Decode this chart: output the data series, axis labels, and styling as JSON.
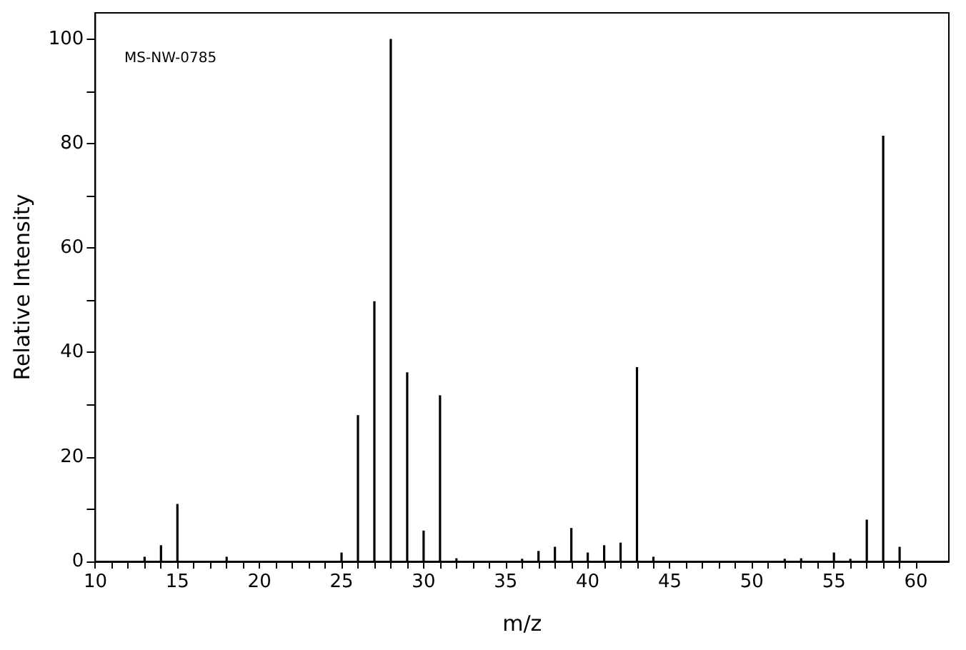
{
  "chart_data": {
    "type": "bar",
    "xlabel": "m/z",
    "ylabel": "Relative Intensity",
    "annotations": [
      "MS-NW-0785"
    ],
    "x": [
      13,
      14,
      15,
      18,
      25,
      26,
      27,
      28,
      29,
      30,
      31,
      32,
      36,
      37,
      38,
      39,
      40,
      41,
      42,
      43,
      44,
      52,
      53,
      55,
      56,
      57,
      58,
      59
    ],
    "values": [
      0.9,
      3.1,
      11,
      0.9,
      1.7,
      28,
      49.8,
      100,
      36.2,
      5.9,
      31.8,
      0.6,
      0.5,
      2,
      2.8,
      6.4,
      1.7,
      3.1,
      3.6,
      37.2,
      0.9,
      0.5,
      0.6,
      1.7,
      0.5,
      8,
      81.5,
      2.8
    ],
    "color": "#000000",
    "xlim": [
      10,
      62
    ],
    "ylim": [
      0,
      105
    ],
    "xticks": [
      10,
      {
        "value": 11,
        "label": null
      },
      {
        "value": 12,
        "label": null
      },
      {
        "value": 13,
        "label": null
      },
      {
        "value": 14,
        "label": null
      },
      15,
      {
        "value": 16,
        "label": null
      },
      {
        "value": 17,
        "label": null
      },
      {
        "value": 18,
        "label": null
      },
      {
        "value": 19,
        "label": null
      },
      20,
      {
        "value": 21,
        "label": null
      },
      {
        "value": 22,
        "label": null
      },
      {
        "value": 23,
        "label": null
      },
      {
        "value": 24,
        "label": null
      },
      25,
      {
        "value": 26,
        "label": null
      },
      {
        "value": 27,
        "label": null
      },
      {
        "value": 28,
        "label": null
      },
      {
        "value": 29,
        "label": null
      },
      30,
      {
        "value": 31,
        "label": null
      },
      {
        "value": 32,
        "label": null
      },
      {
        "value": 33,
        "label": null
      },
      {
        "value": 34,
        "label": null
      },
      35,
      {
        "value": 36,
        "label": null
      },
      {
        "value": 37,
        "label": null
      },
      {
        "value": 38,
        "label": null
      },
      {
        "value": 39,
        "label": null
      },
      40,
      {
        "value": 41,
        "label": null
      },
      {
        "value": 42,
        "label": null
      },
      {
        "value": 43,
        "label": null
      },
      {
        "value": 44,
        "label": null
      },
      45,
      {
        "value": 46,
        "label": null
      },
      {
        "value": 47,
        "label": null
      },
      {
        "value": 48,
        "label": null
      },
      {
        "value": 49,
        "label": null
      },
      50,
      {
        "value": 51,
        "label": null
      },
      {
        "value": 52,
        "label": null
      },
      {
        "value": 53,
        "label": null
      },
      {
        "value": 54,
        "label": null
      },
      55,
      {
        "value": 56,
        "label": null
      },
      {
        "value": 57,
        "label": null
      },
      {
        "value": 58,
        "label": null
      },
      {
        "value": 59,
        "label": null
      },
      60
    ],
    "yticks": [
      0,
      {
        "value": 10,
        "label": null
      },
      20,
      {
        "value": 30,
        "label": null
      },
      40,
      {
        "value": 50,
        "label": null
      },
      60,
      {
        "value": 70,
        "label": null
      },
      80,
      {
        "value": 90,
        "label": null
      },
      100
    ],
    "grid": false
  }
}
